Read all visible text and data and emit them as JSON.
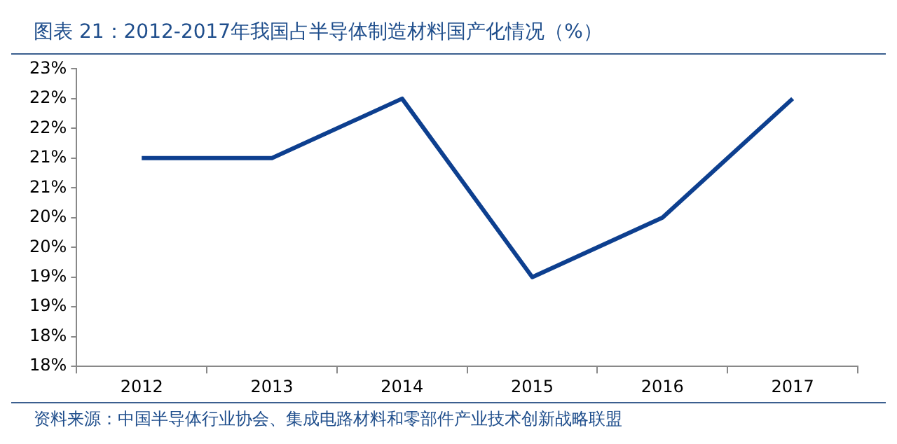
{
  "chart_data": {
    "type": "line",
    "title": "图表 21：2012-2017年我国占半导体制造材料国产化情况（%）",
    "categories": [
      "2012",
      "2013",
      "2014",
      "2015",
      "2016",
      "2017"
    ],
    "series": [
      {
        "color": "#0d3f8f",
        "values": [
          21.5,
          21.5,
          22.5,
          19.5,
          20.5,
          22.5
        ]
      }
    ],
    "ylim": [
      18,
      23
    ],
    "yticks": [
      {
        "value": 18,
        "label": "18%"
      },
      {
        "value": 18.5,
        "label": "18%"
      },
      {
        "value": 19,
        "label": "19%"
      },
      {
        "value": 19.5,
        "label": "19%"
      },
      {
        "value": 20,
        "label": "20%"
      },
      {
        "value": 20.5,
        "label": "20%"
      },
      {
        "value": 21,
        "label": "21%"
      },
      {
        "value": 21.5,
        "label": "21%"
      },
      {
        "value": 22,
        "label": "22%"
      },
      {
        "value": 22.5,
        "label": "22%"
      },
      {
        "value": 23,
        "label": "23%"
      }
    ],
    "grid": false,
    "legend": false,
    "marker": "none",
    "line_style": "solid",
    "annotations": [
      "资料来源：中国半导体行业协会、集成电路材料和零部件产业技术创新战略联盟"
    ]
  }
}
